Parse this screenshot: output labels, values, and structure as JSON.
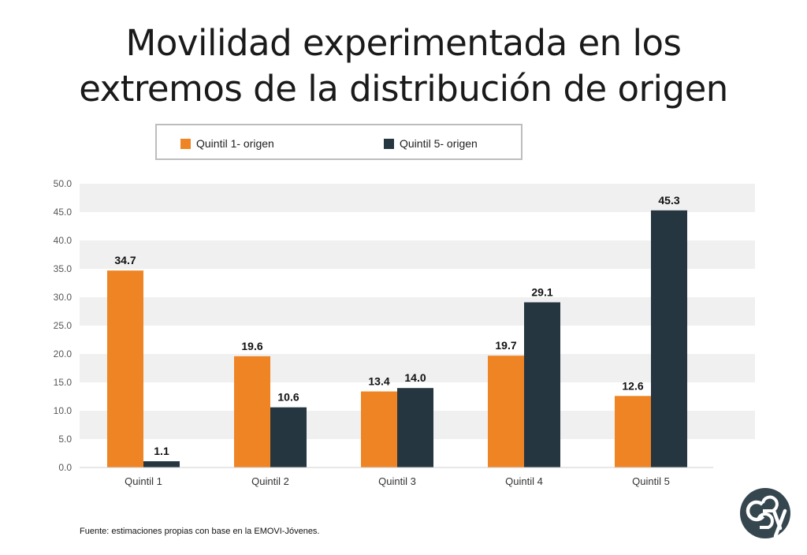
{
  "title_line1": "Movilidad experimentada en los",
  "title_line2": "extremos de la distribución de origen",
  "source": "Fuente: estimaciones propias con base en la EMOVI-Jóvenes.",
  "logo_icon": "ceey-logo-icon",
  "colors": {
    "series1": "#ef8424",
    "series2": "#253640",
    "band": "#f0f0f0",
    "axis": "#cfcfcf",
    "logo": "#35464f"
  },
  "chart_data": {
    "type": "bar",
    "title": "Movilidad experimentada en los extremos de la distribución de origen",
    "categories": [
      "Quintil 1",
      "Quintil 2",
      "Quintil 3",
      "Quintil 4",
      "Quintil 5"
    ],
    "series": [
      {
        "name": "Quintil 1- origen",
        "values": [
          34.7,
          19.6,
          13.4,
          19.7,
          12.6
        ],
        "labels": [
          "34.7",
          "19.6",
          "13.4",
          "19.7",
          "12.6"
        ]
      },
      {
        "name": "Quintil 5- origen",
        "values": [
          1.1,
          10.6,
          14.0,
          29.1,
          45.3
        ],
        "labels": [
          "1.1",
          "10.6",
          "14.0",
          "29.1",
          "45.3"
        ]
      }
    ],
    "yticks": [
      "0.0",
      "5.0",
      "10.0",
      "15.0",
      "20.0",
      "25.0",
      "30.0",
      "35.0",
      "40.0",
      "45.0",
      "50.0"
    ],
    "ylim": [
      0,
      50
    ],
    "xlabel": "",
    "ylabel": "",
    "legend": "top",
    "grid": "alternating bands"
  }
}
